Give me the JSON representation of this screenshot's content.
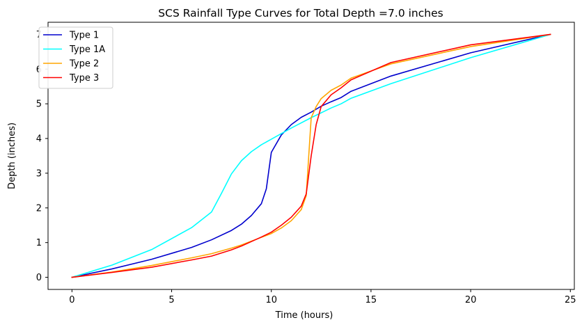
{
  "chart_data": {
    "type": "line",
    "title": "SCS Rainfall Type Curves for Total Depth =7.0 inches",
    "xlabel": "Time (hours)",
    "ylabel": "Depth (inches)",
    "xlim": [
      -1.2,
      25.2
    ],
    "ylim": [
      -0.35,
      7.35
    ],
    "xticks": [
      0,
      5,
      10,
      15,
      20,
      25
    ],
    "yticks": [
      0,
      1,
      2,
      3,
      4,
      5,
      6,
      7
    ],
    "grid": false,
    "legend_position": "top-left",
    "series": [
      {
        "name": "Type 1",
        "color": "#0000cd",
        "x": [
          0,
          2,
          4,
          6,
          7,
          8,
          8.5,
          9,
          9.5,
          9.75,
          10,
          10.5,
          11,
          11.5,
          12,
          12.5,
          13,
          13.5,
          14,
          16,
          20,
          24
        ],
        "y": [
          0,
          0.24,
          0.52,
          0.86,
          1.08,
          1.35,
          1.53,
          1.78,
          2.12,
          2.55,
          3.6,
          4.1,
          4.4,
          4.61,
          4.76,
          4.93,
          5.06,
          5.18,
          5.36,
          5.8,
          6.47,
          7.0
        ]
      },
      {
        "name": "Type 1A",
        "color": "#00ffff",
        "x": [
          0,
          2,
          4,
          6,
          7,
          7.5,
          8,
          8.5,
          9,
          9.5,
          10,
          11,
          12,
          13,
          13.5,
          14,
          16,
          20,
          24
        ],
        "y": [
          0,
          0.35,
          0.8,
          1.43,
          1.88,
          2.42,
          2.98,
          3.36,
          3.62,
          3.82,
          3.98,
          4.3,
          4.6,
          4.88,
          5.0,
          5.16,
          5.58,
          6.33,
          7.0
        ]
      },
      {
        "name": "Type 2",
        "color": "#ffa500",
        "x": [
          0,
          2,
          4,
          6,
          7,
          8,
          8.5,
          9,
          9.5,
          10,
          10.5,
          11,
          11.5,
          11.75,
          12,
          12.25,
          12.5,
          13,
          13.5,
          14,
          16,
          20,
          24
        ],
        "y": [
          0,
          0.15,
          0.34,
          0.56,
          0.68,
          0.84,
          0.93,
          1.04,
          1.15,
          1.26,
          1.42,
          1.63,
          1.95,
          2.35,
          4.6,
          4.92,
          5.15,
          5.39,
          5.54,
          5.74,
          6.15,
          6.65,
          7.0
        ]
      },
      {
        "name": "Type 3",
        "color": "#ff0000",
        "x": [
          0,
          2,
          4,
          6,
          7,
          8,
          8.5,
          9,
          9.5,
          10,
          10.5,
          11,
          11.5,
          11.75,
          12,
          12.25,
          12.5,
          13,
          13.5,
          14,
          16,
          20,
          24
        ],
        "y": [
          0,
          0.14,
          0.29,
          0.5,
          0.61,
          0.79,
          0.9,
          1.03,
          1.16,
          1.3,
          1.5,
          1.73,
          2.05,
          2.4,
          3.5,
          4.4,
          4.92,
          5.26,
          5.46,
          5.69,
          6.19,
          6.7,
          7.0
        ]
      }
    ]
  }
}
